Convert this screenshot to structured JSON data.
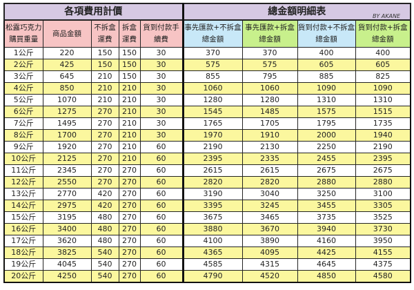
{
  "title_left": "各項費用計價",
  "title_right": "總金額明細表",
  "credit": "BY AKANE",
  "headers": [
    "松露巧克力購買重量",
    "商品金額",
    "不拆盒運費",
    "拆盒運費",
    "貨到付款手續費",
    "事先匯款+不拆盒總金額",
    "事先匯款+拆盒總金額",
    "貨到付款+不拆盒總金額",
    "貨到付款+拆盒總金額"
  ],
  "colors": {
    "title": "#d6c9e3",
    "header_left": "#f7c4c4",
    "header_blue": "#c8e8f8",
    "header_green": "#c8f08c",
    "row_alt": "#fbf79e"
  },
  "rows": [
    [
      "1公斤",
      "220",
      "150",
      "150",
      "30",
      "370",
      "370",
      "400",
      "400"
    ],
    [
      "2公斤",
      "425",
      "150",
      "150",
      "30",
      "575",
      "575",
      "605",
      "605"
    ],
    [
      "3公斤",
      "645",
      "210",
      "150",
      "30",
      "855",
      "795",
      "885",
      "825"
    ],
    [
      "4公斤",
      "850",
      "210",
      "210",
      "30",
      "1060",
      "1060",
      "1090",
      "1090"
    ],
    [
      "5公斤",
      "1070",
      "210",
      "210",
      "30",
      "1280",
      "1280",
      "1310",
      "1310"
    ],
    [
      "6公斤",
      "1275",
      "270",
      "210",
      "30",
      "1545",
      "1485",
      "1575",
      "1515"
    ],
    [
      "7公斤",
      "1495",
      "270",
      "210",
      "30",
      "1765",
      "1705",
      "1795",
      "1735"
    ],
    [
      "8公斤",
      "1700",
      "270",
      "210",
      "30",
      "1970",
      "1910",
      "2000",
      "1940"
    ],
    [
      "9公斤",
      "1920",
      "270",
      "210",
      "60",
      "2190",
      "2130",
      "2250",
      "2190"
    ],
    [
      "10公斤",
      "2125",
      "270",
      "210",
      "60",
      "2395",
      "2335",
      "2455",
      "2395"
    ],
    [
      "11公斤",
      "2345",
      "270",
      "270",
      "60",
      "2615",
      "2615",
      "2675",
      "2675"
    ],
    [
      "12公斤",
      "2550",
      "270",
      "270",
      "60",
      "2820",
      "2820",
      "2880",
      "2880"
    ],
    [
      "13公斤",
      "2770",
      "420",
      "270",
      "60",
      "3190",
      "3040",
      "3250",
      "3100"
    ],
    [
      "14公斤",
      "2975",
      "420",
      "270",
      "60",
      "3395",
      "3245",
      "3455",
      "3305"
    ],
    [
      "15公斤",
      "3195",
      "480",
      "270",
      "60",
      "3675",
      "3465",
      "3735",
      "3525"
    ],
    [
      "16公斤",
      "3400",
      "480",
      "270",
      "60",
      "3880",
      "3670",
      "3940",
      "3730"
    ],
    [
      "17公斤",
      "3620",
      "480",
      "270",
      "60",
      "4100",
      "3890",
      "4160",
      "3950"
    ],
    [
      "18公斤",
      "3825",
      "540",
      "270",
      "60",
      "4365",
      "4095",
      "4425",
      "4155"
    ],
    [
      "19公斤",
      "4045",
      "540",
      "270",
      "60",
      "4585",
      "4315",
      "4645",
      "4375"
    ],
    [
      "20公斤",
      "4250",
      "540",
      "270",
      "60",
      "4790",
      "4520",
      "4850",
      "4580"
    ]
  ]
}
